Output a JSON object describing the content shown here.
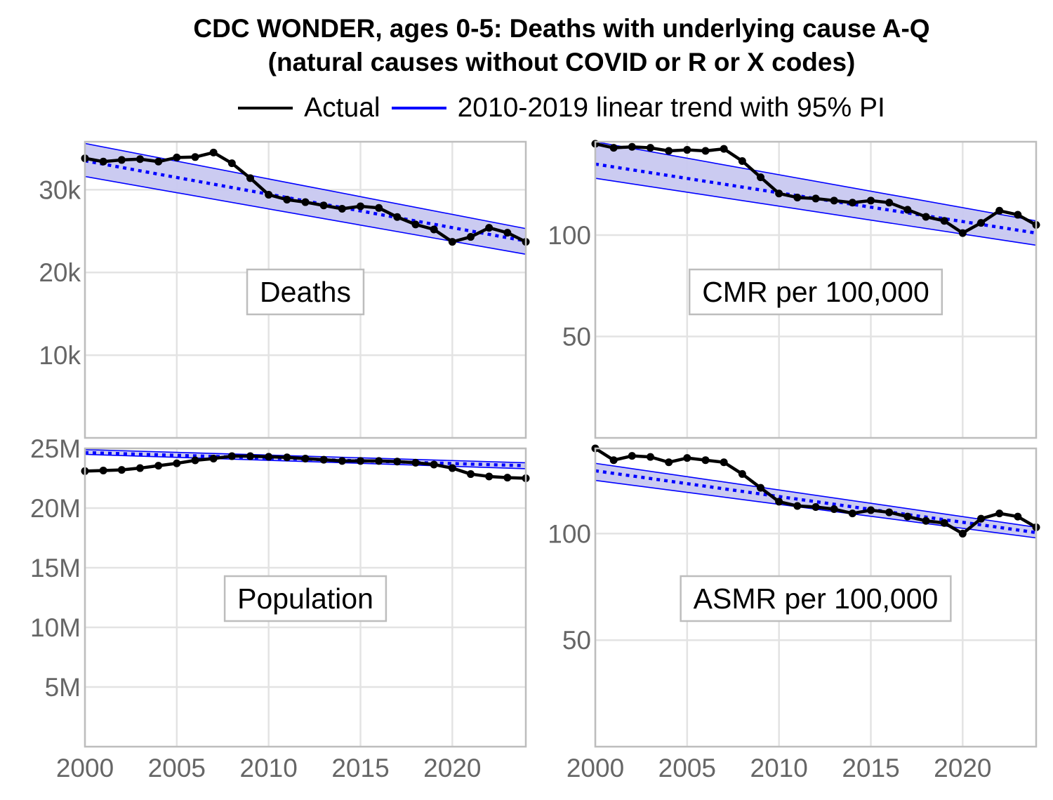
{
  "title_line1": "CDC WONDER, ages 0-5: Deaths with underlying cause A-Q",
  "title_line2": "(natural causes without COVID or R or X codes)",
  "legend": [
    {
      "label": "Actual",
      "color": "#000000"
    },
    {
      "label": "2010-2019 linear trend with 95% PI",
      "color": "#0000ff"
    }
  ],
  "colors": {
    "actual": "#000000",
    "trend": "#0000ff",
    "band": "#c8c8f0",
    "grid": "#e3e3e3",
    "frame": "#bdbdbd",
    "tick_text": "#666666"
  },
  "chart_data": [
    {
      "type": "line",
      "panel_label": "Deaths",
      "x": [
        2000,
        2001,
        2002,
        2003,
        2004,
        2005,
        2006,
        2007,
        2008,
        2009,
        2010,
        2011,
        2012,
        2013,
        2014,
        2015,
        2016,
        2017,
        2018,
        2019,
        2020,
        2021,
        2022,
        2023,
        2024
      ],
      "xlim": [
        2000,
        2024
      ],
      "xticks": [
        "2000",
        "2005",
        "2010",
        "2015",
        "2020"
      ],
      "ylim": [
        0,
        35800
      ],
      "yticks": [
        {
          "v": 10000,
          "label": "10k"
        },
        {
          "v": 20000,
          "label": "20k"
        },
        {
          "v": 30000,
          "label": "30k"
        }
      ],
      "series": [
        {
          "name": "Actual",
          "values": [
            33800,
            33400,
            33600,
            33700,
            33400,
            33900,
            33950,
            34500,
            33200,
            31400,
            29400,
            28800,
            28500,
            28100,
            27700,
            28000,
            27800,
            26700,
            25800,
            25200,
            23700,
            24300,
            25400,
            24800,
            23700
          ]
        },
        {
          "name": "2010-2019 linear trend with 95% PI",
          "trend": [
            33500,
            23800
          ],
          "pi_lower": [
            31600,
            22200
          ],
          "pi_upper": [
            35600,
            25300
          ]
        }
      ]
    },
    {
      "type": "line",
      "panel_label": "CMR per 100,000",
      "x": [
        2000,
        2001,
        2002,
        2003,
        2004,
        2005,
        2006,
        2007,
        2008,
        2009,
        2010,
        2011,
        2012,
        2013,
        2014,
        2015,
        2016,
        2017,
        2018,
        2019,
        2020,
        2021,
        2022,
        2023,
        2024
      ],
      "xlim": [
        2000,
        2024
      ],
      "xticks": [
        "2000",
        "2005",
        "2010",
        "2015",
        "2020"
      ],
      "ylim": [
        0,
        146
      ],
      "yticks": [
        {
          "v": 50,
          "label": "50"
        },
        {
          "v": 100,
          "label": "100"
        }
      ],
      "series": [
        {
          "name": "Actual",
          "values": [
            145,
            143,
            143.5,
            143,
            141.5,
            142,
            141.5,
            142.5,
            136.5,
            128.5,
            120.5,
            118.5,
            118,
            117,
            116,
            117,
            116,
            112.5,
            109,
            107,
            101,
            106,
            112,
            110,
            105
          ]
        },
        {
          "name": "2010-2019 linear trend with 95% PI",
          "trend": [
            135,
            101
          ],
          "pi_lower": [
            128,
            95
          ],
          "pi_upper": [
            146,
            107
          ]
        }
      ]
    },
    {
      "type": "line",
      "panel_label": "Population",
      "x": [
        2000,
        2001,
        2002,
        2003,
        2004,
        2005,
        2006,
        2007,
        2008,
        2009,
        2010,
        2011,
        2012,
        2013,
        2014,
        2015,
        2016,
        2017,
        2018,
        2019,
        2020,
        2021,
        2022,
        2023,
        2024
      ],
      "xlim": [
        2000,
        2024
      ],
      "xticks": [
        "2000",
        "2005",
        "2010",
        "2015",
        "2020"
      ],
      "ylim": [
        0,
        25000000
      ],
      "yticks": [
        {
          "v": 5000000,
          "label": "5M"
        },
        {
          "v": 10000000,
          "label": "10M"
        },
        {
          "v": 15000000,
          "label": "15M"
        },
        {
          "v": 20000000,
          "label": "20M"
        },
        {
          "v": 25000000,
          "label": "25M"
        }
      ],
      "series": [
        {
          "name": "Actual",
          "values": [
            23100000,
            23150000,
            23200000,
            23350000,
            23550000,
            23750000,
            24000000,
            24150000,
            24350000,
            24350000,
            24300000,
            24250000,
            24150000,
            24050000,
            23950000,
            23950000,
            23950000,
            23900000,
            23800000,
            23650000,
            23350000,
            22850000,
            22650000,
            22550000,
            22500000
          ]
        },
        {
          "name": "2010-2019 linear trend with 95% PI",
          "trend": [
            24650000,
            23550000
          ],
          "pi_lower": [
            24500000,
            23300000
          ],
          "pi_upper": [
            24900000,
            23800000
          ]
        }
      ]
    },
    {
      "type": "line",
      "panel_label": "ASMR per 100,000",
      "x": [
        2000,
        2001,
        2002,
        2003,
        2004,
        2005,
        2006,
        2007,
        2008,
        2009,
        2010,
        2011,
        2012,
        2013,
        2014,
        2015,
        2016,
        2017,
        2018,
        2019,
        2020,
        2021,
        2022,
        2023,
        2024
      ],
      "xlim": [
        2000,
        2024
      ],
      "xticks": [
        "2000",
        "2005",
        "2010",
        "2015",
        "2020"
      ],
      "ylim": [
        0,
        140
      ],
      "yticks": [
        {
          "v": 50,
          "label": "50"
        },
        {
          "v": 100,
          "label": "100"
        }
      ],
      "series": [
        {
          "name": "Actual",
          "values": [
            140,
            134.5,
            136.5,
            136,
            133.5,
            135.5,
            134.5,
            133.5,
            128,
            121.5,
            115,
            113,
            112.5,
            111.5,
            109.5,
            111,
            110,
            108,
            106,
            105,
            100,
            107,
            109.5,
            108,
            103
          ]
        },
        {
          "name": "2010-2019 linear trend with 95% PI",
          "trend": [
            129.5,
            100.5
          ],
          "pi_lower": [
            125,
            98
          ],
          "pi_upper": [
            133,
            103
          ]
        }
      ]
    }
  ]
}
